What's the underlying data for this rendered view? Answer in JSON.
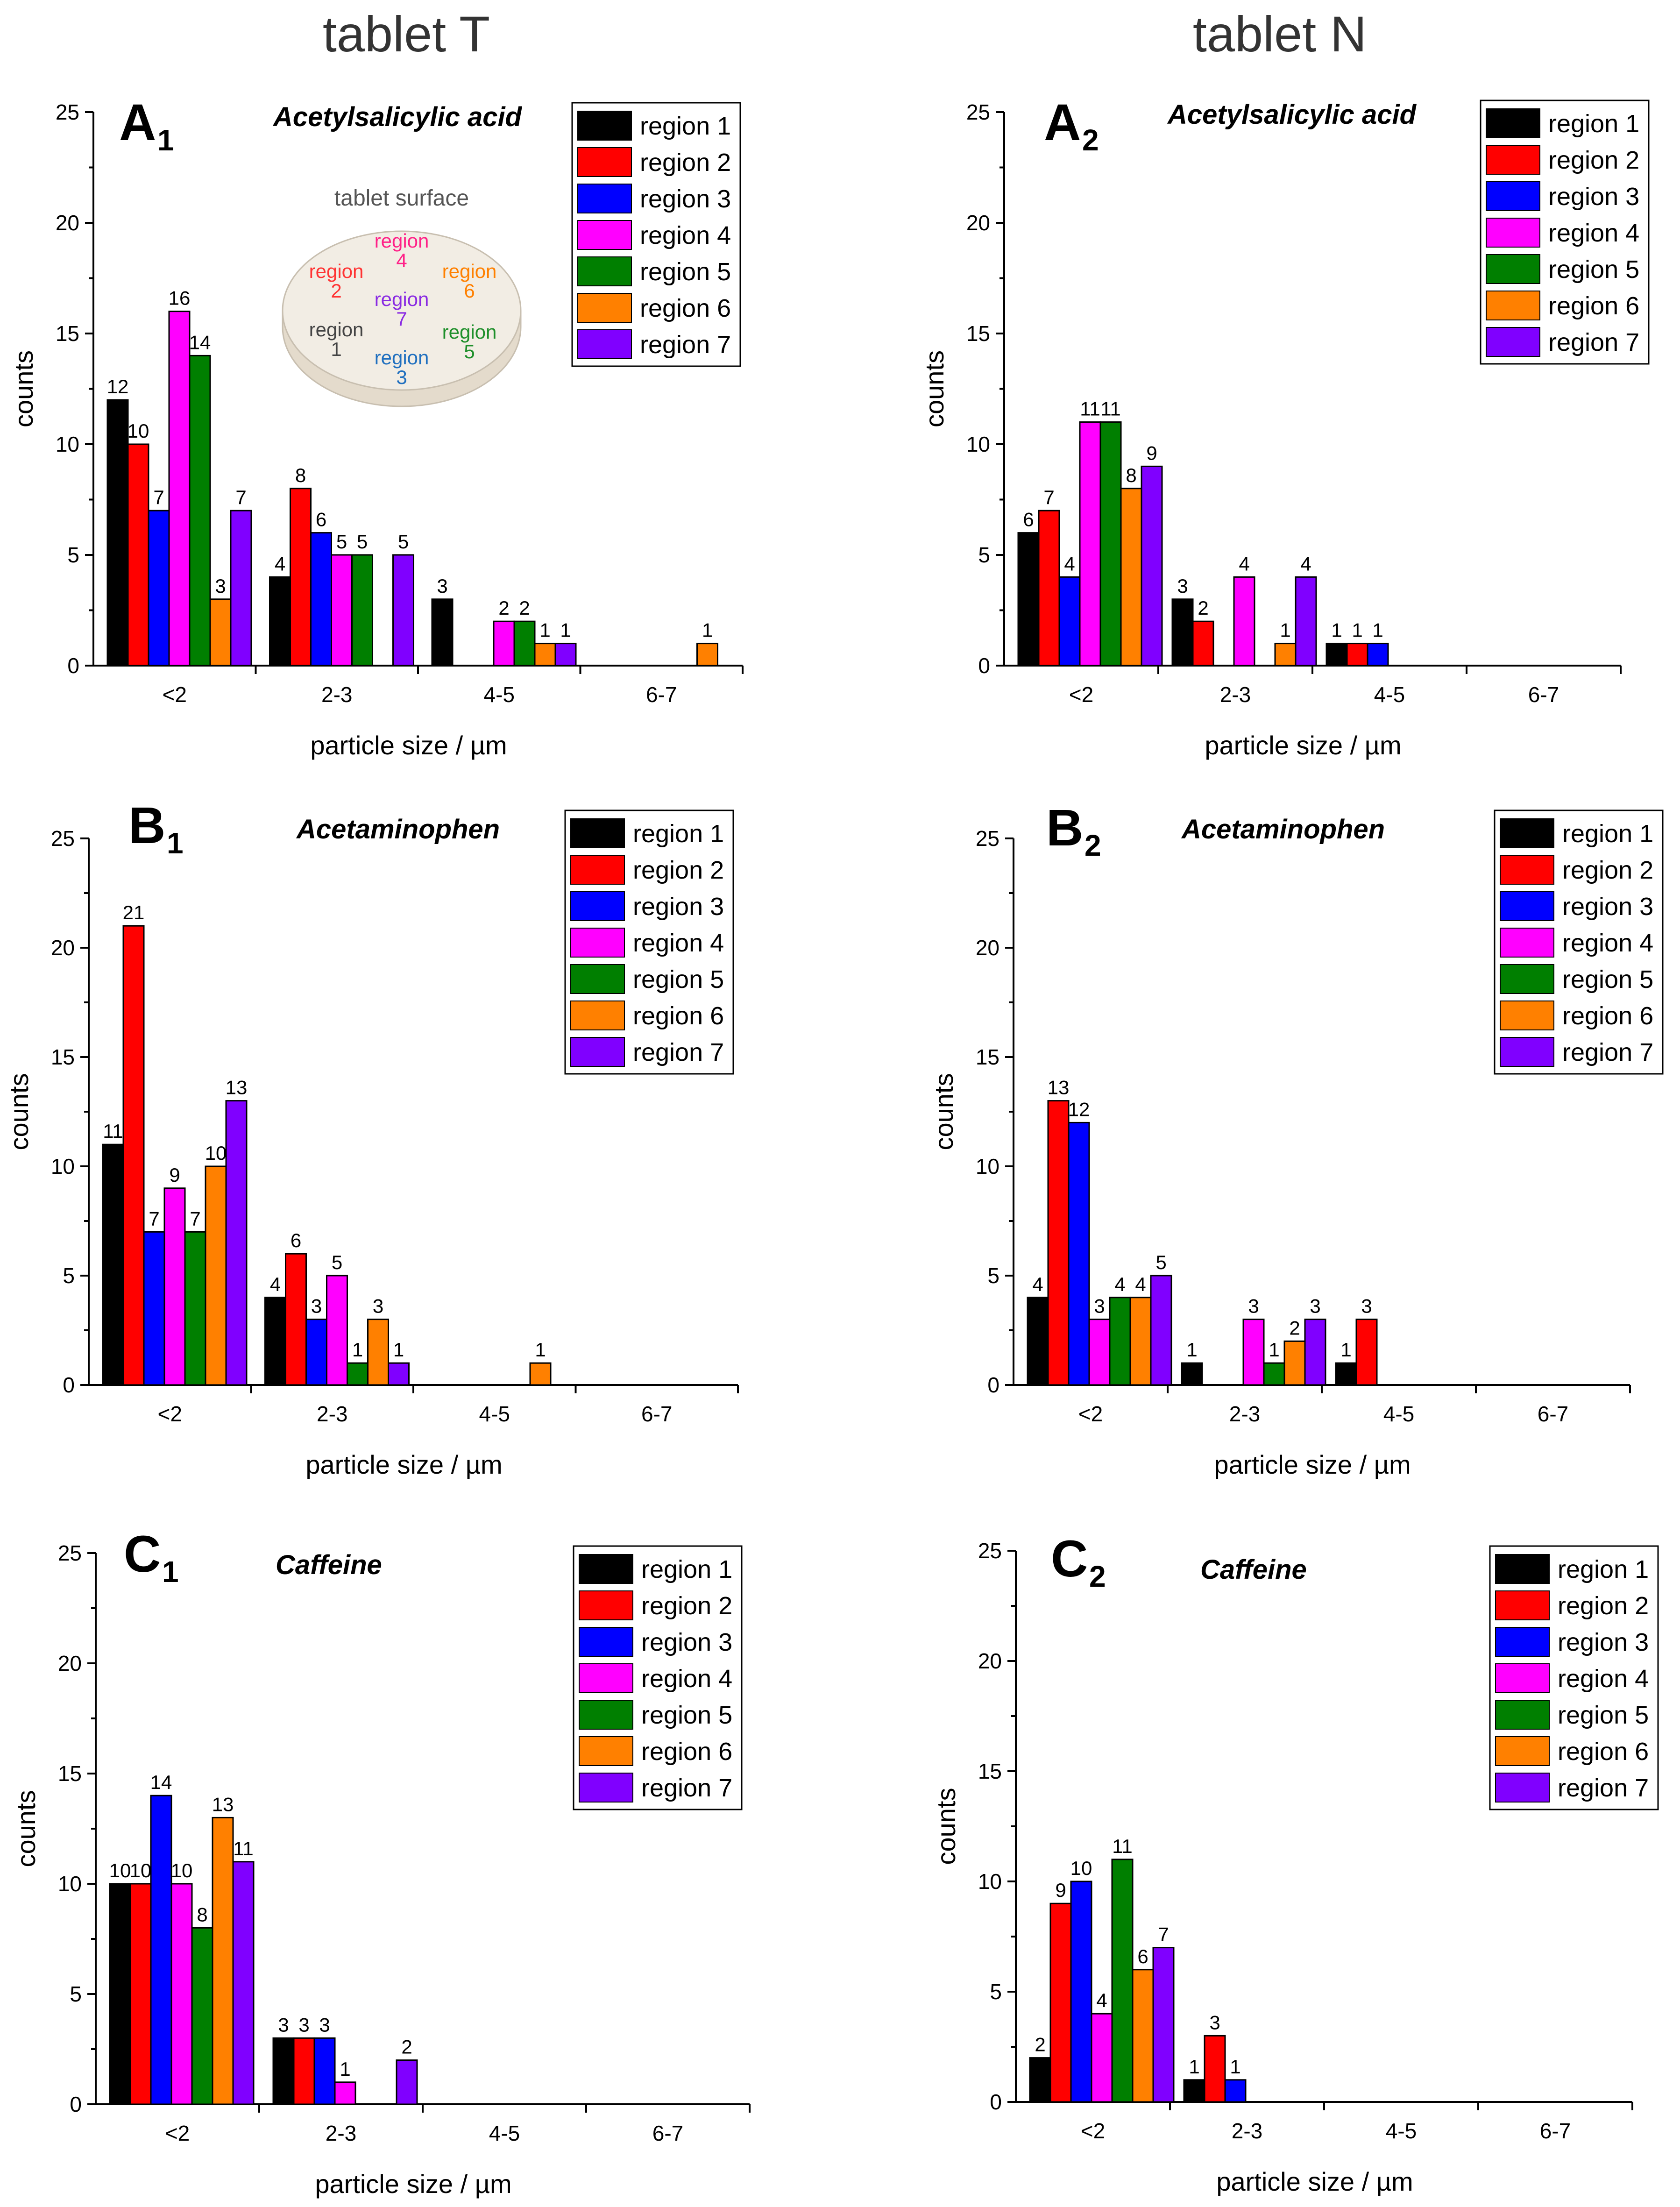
{
  "headers": {
    "left": "tablet T",
    "right": "tablet N"
  },
  "colors": [
    "#000000",
    "#ff0000",
    "#0000ff",
    "#ff00ff",
    "#007f00",
    "#ff8000",
    "#8000ff"
  ],
  "inset": {
    "title": "tablet surface",
    "regions": [
      {
        "line1": "region",
        "line2": "1",
        "color": "#444444"
      },
      {
        "line1": "region",
        "line2": "2",
        "color": "#ff3333"
      },
      {
        "line1": "region",
        "line2": "3",
        "color": "#1f6fbf"
      },
      {
        "line1": "region",
        "line2": "4",
        "color": "#ff2288"
      },
      {
        "line1": "region",
        "line2": "5",
        "color": "#1e8f2a"
      },
      {
        "line1": "region",
        "line2": "6",
        "color": "#ff8000"
      },
      {
        "line1": "region",
        "line2": "7",
        "color": "#8a2be2"
      }
    ]
  },
  "chart_data": [
    {
      "id": "A1",
      "letter": "A",
      "sub": "1",
      "type": "bar",
      "title": "Acetylsalicylic acid",
      "xlabel": "particle size / µm",
      "ylabel": "counts",
      "ylim": [
        0,
        25
      ],
      "yticks": [
        "0",
        "5",
        "10",
        "15",
        "20",
        "25"
      ],
      "categories": [
        "<2",
        "2-3",
        "4-5",
        "6-7"
      ],
      "series": [
        {
          "name": "region 1",
          "values": [
            12,
            4,
            3,
            0
          ]
        },
        {
          "name": "region 2",
          "values": [
            10,
            8,
            0,
            0
          ]
        },
        {
          "name": "region 3",
          "values": [
            7,
            6,
            0,
            0
          ]
        },
        {
          "name": "region 4",
          "values": [
            16,
            5,
            2,
            0
          ]
        },
        {
          "name": "region 5",
          "values": [
            14,
            5,
            2,
            0
          ]
        },
        {
          "name": "region 6",
          "values": [
            3,
            0,
            1,
            1
          ]
        },
        {
          "name": "region 7",
          "values": [
            7,
            5,
            1,
            0
          ]
        }
      ]
    },
    {
      "id": "A2",
      "letter": "A",
      "sub": "2",
      "type": "bar",
      "title": "Acetylsalicylic acid",
      "xlabel": "particle size / µm",
      "ylabel": "counts",
      "ylim": [
        0,
        25
      ],
      "yticks": [
        "0",
        "5",
        "10",
        "15",
        "20",
        "25"
      ],
      "categories": [
        "<2",
        "2-3",
        "4-5",
        "6-7"
      ],
      "series": [
        {
          "name": "region 1",
          "values": [
            6,
            3,
            1,
            0
          ]
        },
        {
          "name": "region 2",
          "values": [
            7,
            2,
            1,
            0
          ]
        },
        {
          "name": "region 3",
          "values": [
            4,
            0,
            1,
            0
          ]
        },
        {
          "name": "region 4",
          "values": [
            11,
            4,
            0,
            0
          ]
        },
        {
          "name": "region 5",
          "values": [
            11,
            0,
            0,
            0
          ]
        },
        {
          "name": "region 6",
          "values": [
            8,
            1,
            0,
            0
          ]
        },
        {
          "name": "region 7",
          "values": [
            9,
            4,
            0,
            0
          ]
        }
      ]
    },
    {
      "id": "B1",
      "letter": "B",
      "sub": "1",
      "type": "bar",
      "title": "Acetaminophen",
      "xlabel": "particle size / µm",
      "ylabel": "counts",
      "ylim": [
        0,
        25
      ],
      "yticks": [
        "0",
        "5",
        "10",
        "15",
        "20",
        "25"
      ],
      "categories": [
        "<2",
        "2-3",
        "4-5",
        "6-7"
      ],
      "series": [
        {
          "name": "region 1",
          "values": [
            11,
            4,
            0,
            0
          ]
        },
        {
          "name": "region 2",
          "values": [
            21,
            6,
            0,
            0
          ]
        },
        {
          "name": "region 3",
          "values": [
            7,
            3,
            0,
            0
          ]
        },
        {
          "name": "region 4",
          "values": [
            9,
            5,
            0,
            0
          ]
        },
        {
          "name": "region 5",
          "values": [
            7,
            1,
            0,
            0
          ]
        },
        {
          "name": "region 6",
          "values": [
            10,
            3,
            1,
            0
          ]
        },
        {
          "name": "region 7",
          "values": [
            13,
            1,
            0,
            0
          ]
        }
      ]
    },
    {
      "id": "B2",
      "letter": "B",
      "sub": "2",
      "type": "bar",
      "title": "Acetaminophen",
      "xlabel": "particle size / µm",
      "ylabel": "counts",
      "ylim": [
        0,
        25
      ],
      "yticks": [
        "0",
        "5",
        "10",
        "15",
        "20",
        "25"
      ],
      "categories": [
        "<2",
        "2-3",
        "4-5",
        "6-7"
      ],
      "series": [
        {
          "name": "region 1",
          "values": [
            4,
            1,
            1,
            0
          ]
        },
        {
          "name": "region 2",
          "values": [
            13,
            0,
            3,
            0
          ]
        },
        {
          "name": "region 3",
          "values": [
            12,
            0,
            0,
            0
          ]
        },
        {
          "name": "region 4",
          "values": [
            3,
            3,
            0,
            0
          ]
        },
        {
          "name": "region 5",
          "values": [
            4,
            1,
            0,
            0
          ]
        },
        {
          "name": "region 6",
          "values": [
            4,
            2,
            0,
            0
          ]
        },
        {
          "name": "region 7",
          "values": [
            5,
            3,
            0,
            0
          ]
        }
      ]
    },
    {
      "id": "C1",
      "letter": "C",
      "sub": "1",
      "type": "bar",
      "title": "Caffeine",
      "xlabel": "particle size / µm",
      "ylabel": "counts",
      "ylim": [
        0,
        25
      ],
      "yticks": [
        "0",
        "5",
        "10",
        "15",
        "20",
        "25"
      ],
      "categories": [
        "<2",
        "2-3",
        "4-5",
        "6-7"
      ],
      "series": [
        {
          "name": "region 1",
          "values": [
            10,
            3,
            0,
            0
          ]
        },
        {
          "name": "region 2",
          "values": [
            10,
            3,
            0,
            0
          ]
        },
        {
          "name": "region 3",
          "values": [
            14,
            3,
            0,
            0
          ]
        },
        {
          "name": "region 4",
          "values": [
            10,
            1,
            0,
            0
          ]
        },
        {
          "name": "region 5",
          "values": [
            8,
            0,
            0,
            0
          ]
        },
        {
          "name": "region 6",
          "values": [
            13,
            0,
            0,
            0
          ]
        },
        {
          "name": "region 7",
          "values": [
            11,
            2,
            0,
            0
          ]
        }
      ]
    },
    {
      "id": "C2",
      "letter": "C",
      "sub": "2",
      "type": "bar",
      "title": "Caffeine",
      "xlabel": "particle size / µm",
      "ylabel": "counts",
      "ylim": [
        0,
        25
      ],
      "yticks": [
        "0",
        "5",
        "10",
        "15",
        "20",
        "25"
      ],
      "categories": [
        "<2",
        "2-3",
        "4-5",
        "6-7"
      ],
      "series": [
        {
          "name": "region 1",
          "values": [
            2,
            1,
            0,
            0
          ]
        },
        {
          "name": "region 2",
          "values": [
            9,
            3,
            0,
            0
          ]
        },
        {
          "name": "region 3",
          "values": [
            10,
            1,
            0,
            0
          ]
        },
        {
          "name": "region 4",
          "values": [
            4,
            0,
            0,
            0
          ]
        },
        {
          "name": "region 5",
          "values": [
            11,
            0,
            0,
            0
          ]
        },
        {
          "name": "region 6",
          "values": [
            6,
            0,
            0,
            0
          ]
        },
        {
          "name": "region 7",
          "values": [
            7,
            0,
            0,
            0
          ]
        }
      ]
    }
  ]
}
